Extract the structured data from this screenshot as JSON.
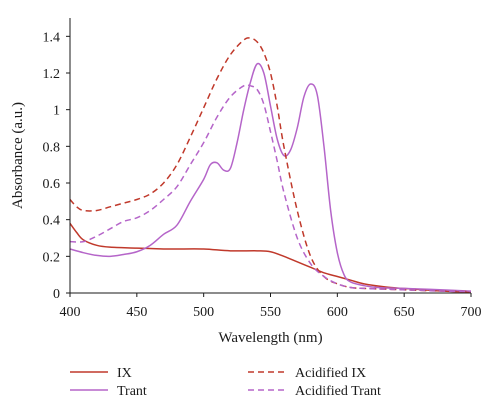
{
  "chart_data": {
    "type": "line",
    "title": "",
    "xlabel": "Wavelength (nm)",
    "ylabel": "Absorbance (a.u.)",
    "xlim": [
      400,
      700
    ],
    "ylim": [
      0,
      1.5
    ],
    "xticks": [
      400,
      450,
      500,
      550,
      600,
      650,
      700
    ],
    "yticks": [
      0,
      0.2,
      0.4,
      0.6,
      0.8,
      1,
      1.2,
      1.4
    ],
    "ytick_labels": [
      "0",
      "0.2",
      "0.4",
      "0.6",
      "0.8",
      "1",
      "1.2",
      "1.4"
    ],
    "grid": false,
    "legend_position": "bottom",
    "series": [
      {
        "name": "IX",
        "color": "#c0392b",
        "dash": "solid",
        "x": [
          400,
          405,
          410,
          420,
          430,
          450,
          470,
          480,
          500,
          520,
          540,
          550,
          560,
          570,
          580,
          590,
          600,
          610,
          620,
          640,
          660,
          680,
          700
        ],
        "y": [
          0.38,
          0.33,
          0.29,
          0.26,
          0.25,
          0.245,
          0.24,
          0.24,
          0.24,
          0.23,
          0.23,
          0.225,
          0.2,
          0.17,
          0.14,
          0.11,
          0.09,
          0.07,
          0.05,
          0.03,
          0.02,
          0.01,
          0.005
        ]
      },
      {
        "name": "Trant",
        "color": "#b565c9",
        "dash": "solid",
        "x": [
          400,
          410,
          420,
          430,
          440,
          450,
          460,
          470,
          480,
          490,
          500,
          505,
          510,
          515,
          520,
          525,
          530,
          535,
          540,
          545,
          550,
          555,
          560,
          565,
          570,
          575,
          580,
          585,
          590,
          595,
          600,
          605,
          610,
          620,
          630,
          650,
          670,
          700
        ],
        "y": [
          0.24,
          0.22,
          0.205,
          0.2,
          0.21,
          0.225,
          0.26,
          0.32,
          0.37,
          0.5,
          0.62,
          0.7,
          0.71,
          0.67,
          0.68,
          0.82,
          1.0,
          1.15,
          1.25,
          1.2,
          1.02,
          0.84,
          0.75,
          0.78,
          0.9,
          1.07,
          1.14,
          1.08,
          0.8,
          0.45,
          0.22,
          0.1,
          0.06,
          0.04,
          0.03,
          0.025,
          0.02,
          0.01
        ]
      },
      {
        "name": "Acidified IX",
        "color": "#c0392b",
        "dash": "dashed",
        "x": [
          400,
          405,
          410,
          420,
          430,
          440,
          450,
          460,
          470,
          480,
          490,
          500,
          510,
          520,
          530,
          535,
          540,
          545,
          550,
          555,
          560,
          570,
          580,
          590,
          600,
          610,
          620,
          640,
          660,
          680,
          700
        ],
        "y": [
          0.51,
          0.47,
          0.45,
          0.45,
          0.47,
          0.49,
          0.51,
          0.54,
          0.6,
          0.7,
          0.85,
          1.01,
          1.17,
          1.3,
          1.38,
          1.39,
          1.37,
          1.31,
          1.2,
          1.02,
          0.8,
          0.45,
          0.2,
          0.09,
          0.05,
          0.03,
          0.025,
          0.02,
          0.015,
          0.01,
          0.008
        ]
      },
      {
        "name": "Acidified Trant",
        "color": "#b565c9",
        "dash": "dashed",
        "x": [
          400,
          410,
          420,
          430,
          440,
          450,
          460,
          470,
          480,
          490,
          500,
          510,
          520,
          530,
          535,
          540,
          545,
          550,
          555,
          560,
          570,
          580,
          590,
          600,
          610,
          620,
          640,
          660,
          680,
          700
        ],
        "y": [
          0.28,
          0.28,
          0.31,
          0.35,
          0.39,
          0.41,
          0.45,
          0.51,
          0.58,
          0.7,
          0.82,
          0.96,
          1.07,
          1.13,
          1.13,
          1.11,
          1.03,
          0.88,
          0.72,
          0.55,
          0.3,
          0.16,
          0.09,
          0.05,
          0.03,
          0.025,
          0.02,
          0.015,
          0.01,
          0.008
        ]
      }
    ]
  }
}
